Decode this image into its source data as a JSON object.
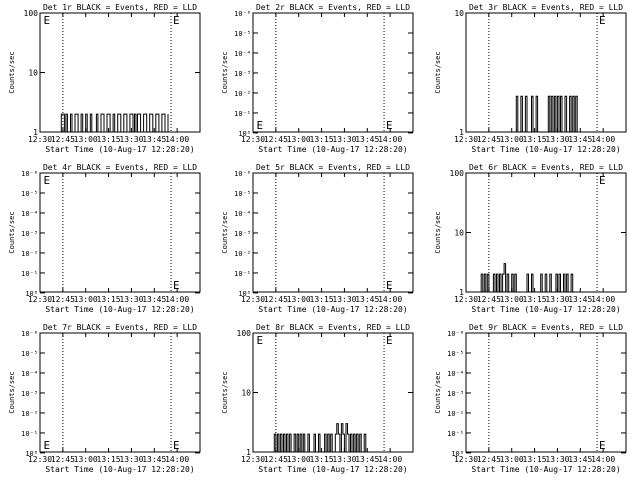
{
  "chart_data": [
    {
      "type": "line",
      "title": "Det 1r BLACK = Events, RED = LLD",
      "xlabel": "Start Time (10-Aug-17 12:28:20)",
      "ylabel": "Counts/sec",
      "scale": "log",
      "ylim": [
        1,
        100
      ],
      "ytick_values": [
        1,
        10,
        100
      ],
      "ytick_labels": [
        "1",
        "10",
        "100"
      ],
      "xticks": [
        "12:30",
        "12:45",
        "13:00",
        "13:15",
        "13:30",
        "13:45",
        "14:00"
      ],
      "xlim_min": [
        0,
        105
      ],
      "dotted_lines_min": [
        15,
        86,
        105
      ],
      "markers": [
        {
          "label": "E",
          "x": 1,
          "y": "top"
        },
        {
          "label": "E",
          "x": 86,
          "y": "top"
        }
      ],
      "series": [
        {
          "values": [
            [
              13,
              1
            ],
            [
              14,
              2
            ],
            [
              16,
              1
            ],
            [
              17,
              2
            ],
            [
              18,
              1
            ],
            [
              20,
              2
            ],
            [
              21,
              1
            ],
            [
              23,
              2
            ],
            [
              25,
              1
            ],
            [
              27,
              2
            ],
            [
              28,
              1
            ],
            [
              30,
              2
            ],
            [
              31,
              1
            ],
            [
              33,
              2
            ],
            [
              34,
              1
            ],
            [
              37,
              2
            ],
            [
              38,
              1
            ],
            [
              40,
              2
            ],
            [
              42,
              1
            ],
            [
              44,
              2
            ],
            [
              46,
              1
            ],
            [
              48,
              2
            ],
            [
              49,
              1
            ],
            [
              51,
              2
            ],
            [
              53,
              1
            ],
            [
              55,
              2
            ],
            [
              57,
              1
            ],
            [
              59,
              2
            ],
            [
              61,
              1
            ],
            [
              62,
              2
            ],
            [
              63,
              1
            ],
            [
              64,
              2
            ],
            [
              66,
              1
            ],
            [
              68,
              2
            ],
            [
              70,
              1
            ],
            [
              72,
              2
            ],
            [
              74,
              1
            ],
            [
              76,
              2
            ],
            [
              78,
              1
            ],
            [
              80,
              2
            ],
            [
              82,
              1
            ],
            [
              84,
              2
            ]
          ]
        }
      ]
    },
    {
      "type": "line",
      "title": "Det 2r BLACK = Events, RED = LLD",
      "xlabel": "Start Time (10-Aug-17 12:28:20)",
      "ylabel": "Counts/sec",
      "scale": "log",
      "ylim": [
        0.9,
        1e-06
      ],
      "ytick_labels": [
        "10⁰",
        "10⁻¹",
        "10⁻²",
        "10⁻³",
        "10⁻⁴",
        "10⁻⁵",
        "10⁻⁶"
      ],
      "xticks": [
        "12:30",
        "12:45",
        "13:00",
        "13:15",
        "13:30",
        "13:45",
        "14:00"
      ],
      "xlim_min": [
        0,
        105
      ],
      "dotted_lines_min": [
        15,
        86,
        105
      ],
      "markers": [
        {
          "label": "E",
          "x": 1,
          "y": "bottom"
        },
        {
          "label": "E",
          "x": 86,
          "y": "bottom"
        }
      ],
      "series": []
    },
    {
      "type": "line",
      "title": "Det 3r BLACK = Events, RED = LLD",
      "xlabel": "Start Time (10-Aug-17 12:28:20)",
      "ylabel": "Counts/sec",
      "scale": "log",
      "ylim": [
        1,
        10
      ],
      "ytick_values": [
        1,
        10
      ],
      "ytick_labels": [
        "1",
        "10"
      ],
      "xticks": [
        "12:30",
        "12:45",
        "13:00",
        "13:15",
        "13:30",
        "13:45",
        "14:00"
      ],
      "xlim_min": [
        0,
        105
      ],
      "dotted_lines_min": [
        15,
        86,
        105
      ],
      "markers": [
        {
          "label": "E",
          "x": 86,
          "y": "top"
        }
      ],
      "series": [
        {
          "values": [
            [
              32,
              1
            ],
            [
              33,
              2
            ],
            [
              34,
              1
            ],
            [
              36,
              2
            ],
            [
              37,
              1
            ],
            [
              39,
              2
            ],
            [
              40,
              1
            ],
            [
              43,
              2
            ],
            [
              44,
              1
            ],
            [
              46,
              2
            ],
            [
              47,
              1
            ],
            [
              54,
              2
            ],
            [
              55,
              1
            ],
            [
              56,
              2
            ],
            [
              57,
              1
            ],
            [
              58,
              2
            ],
            [
              59,
              1
            ],
            [
              60,
              2
            ],
            [
              61,
              1
            ],
            [
              62,
              2
            ],
            [
              63,
              1
            ],
            [
              65,
              2
            ],
            [
              66,
              1
            ],
            [
              68,
              2
            ],
            [
              69,
              1
            ],
            [
              70,
              2
            ],
            [
              71,
              1
            ],
            [
              72,
              2
            ],
            [
              73,
              1
            ]
          ]
        }
      ]
    },
    {
      "type": "line",
      "title": "Det 4r BLACK = Events, RED = LLD",
      "xlabel": "Start Time (10-Aug-17 12:28:20)",
      "ylabel": "Counts/sec",
      "scale": "log",
      "ylim": [
        0.9,
        1e-06
      ],
      "ytick_labels": [
        "10⁰",
        "10⁻¹",
        "10⁻²",
        "10⁻³",
        "10⁻⁴",
        "10⁻⁵",
        "10⁻⁶"
      ],
      "xticks": [
        "12:30",
        "12:45",
        "13:00",
        "13:15",
        "13:30",
        "13:45",
        "14:00"
      ],
      "xlim_min": [
        0,
        105
      ],
      "dotted_lines_min": [
        15,
        86,
        105
      ],
      "markers": [
        {
          "label": "E",
          "x": 1,
          "y": "top"
        },
        {
          "label": "E",
          "x": 86,
          "y": "bottom"
        }
      ],
      "series": []
    },
    {
      "type": "line",
      "title": "Det 5r BLACK = Events, RED = LLD",
      "xlabel": "Start Time (10-Aug-17 12:28:20)",
      "ylabel": "Counts/sec",
      "scale": "log",
      "ylim": [
        0.9,
        1e-06
      ],
      "ytick_labels": [
        "10⁰",
        "10⁻¹",
        "10⁻²",
        "10⁻³",
        "10⁻⁴",
        "10⁻⁵",
        "10⁻⁶"
      ],
      "xticks": [
        "12:30",
        "12:45",
        "13:00",
        "13:15",
        "13:30",
        "13:45",
        "14:00"
      ],
      "xlim_min": [
        0,
        105
      ],
      "dotted_lines_min": [
        15,
        86,
        105
      ],
      "markers": [
        {
          "label": "E",
          "x": 86,
          "y": "bottom"
        }
      ],
      "series": []
    },
    {
      "type": "line",
      "title": "Det 6r BLACK = Events, RED = LLD",
      "xlabel": "Start Time (10-Aug-17 12:28:20)",
      "ylabel": "Counts/sec",
      "scale": "log",
      "ylim": [
        1,
        100
      ],
      "ytick_values": [
        1,
        10,
        100
      ],
      "ytick_labels": [
        "1",
        "10",
        "100"
      ],
      "xticks": [
        "12:30",
        "12:45",
        "13:00",
        "13:15",
        "13:30",
        "13:45",
        "14:00"
      ],
      "xlim_min": [
        0,
        105
      ],
      "dotted_lines_min": [
        15,
        86,
        105
      ],
      "markers": [
        {
          "label": "E",
          "x": 86,
          "y": "top"
        }
      ],
      "series": [
        {
          "values": [
            [
              9,
              1
            ],
            [
              10,
              2
            ],
            [
              11,
              1
            ],
            [
              12,
              2
            ],
            [
              13,
              1
            ],
            [
              14,
              2
            ],
            [
              15,
              1
            ],
            [
              18,
              2
            ],
            [
              19,
              1
            ],
            [
              20,
              2
            ],
            [
              21,
              1
            ],
            [
              22,
              2
            ],
            [
              23,
              1
            ],
            [
              24,
              2
            ],
            [
              25,
              3
            ],
            [
              26,
              1
            ],
            [
              27,
              2
            ],
            [
              28,
              1
            ],
            [
              30,
              2
            ],
            [
              31,
              1
            ],
            [
              32,
              2
            ],
            [
              33,
              1
            ],
            [
              40,
              2
            ],
            [
              41,
              1
            ],
            [
              43,
              2
            ],
            [
              44,
              1
            ],
            [
              49,
              2
            ],
            [
              50,
              1
            ],
            [
              52,
              2
            ],
            [
              53,
              1
            ],
            [
              55,
              2
            ],
            [
              56,
              1
            ],
            [
              59,
              2
            ],
            [
              60,
              1
            ],
            [
              61,
              2
            ],
            [
              62,
              1
            ],
            [
              64,
              2
            ],
            [
              65,
              1
            ],
            [
              66,
              2
            ],
            [
              67,
              1
            ],
            [
              69,
              2
            ],
            [
              70,
              1
            ]
          ]
        }
      ]
    },
    {
      "type": "line",
      "title": "Det 7r BLACK = Events, RED = LLD",
      "xlabel": "Start Time (10-Aug-17 12:28:20)",
      "ylabel": "Counts/sec",
      "scale": "log",
      "ylim": [
        0.9,
        1e-06
      ],
      "ytick_labels": [
        "10⁰",
        "10⁻¹",
        "10⁻²",
        "10⁻³",
        "10⁻⁴",
        "10⁻⁵",
        "10⁻⁶"
      ],
      "xticks": [
        "12:30",
        "12:45",
        "13:00",
        "13:15",
        "13:30",
        "13:45",
        "14:00"
      ],
      "xlim_min": [
        0,
        105
      ],
      "dotted_lines_min": [
        15,
        86,
        105
      ],
      "markers": [
        {
          "label": "E",
          "x": 1,
          "y": "bottom"
        },
        {
          "label": "E",
          "x": 86,
          "y": "bottom"
        }
      ],
      "series": []
    },
    {
      "type": "line",
      "title": "Det 8r BLACK = Events, RED = LLD",
      "xlabel": "Start Time (10-Aug-17 12:28:20)",
      "ylabel": "Counts/sec",
      "scale": "log",
      "ylim": [
        1,
        100
      ],
      "ytick_values": [
        1,
        10,
        100
      ],
      "ytick_labels": [
        "1",
        "10",
        "100"
      ],
      "xticks": [
        "12:30",
        "12:45",
        "13:00",
        "13:15",
        "13:30",
        "13:45",
        "14:00"
      ],
      "xlim_min": [
        0,
        105
      ],
      "dotted_lines_min": [
        15,
        86,
        105
      ],
      "markers": [
        {
          "label": "E",
          "x": 1,
          "y": "top"
        },
        {
          "label": "E",
          "x": 86,
          "y": "top"
        }
      ],
      "series": [
        {
          "values": [
            [
              13,
              1
            ],
            [
              14,
              2
            ],
            [
              15,
              1
            ],
            [
              16,
              2
            ],
            [
              17,
              1
            ],
            [
              18,
              2
            ],
            [
              19,
              1
            ],
            [
              20,
              2
            ],
            [
              21,
              1
            ],
            [
              22,
              2
            ],
            [
              23,
              1
            ],
            [
              24,
              2
            ],
            [
              25,
              1
            ],
            [
              27,
              2
            ],
            [
              28,
              1
            ],
            [
              29,
              2
            ],
            [
              30,
              1
            ],
            [
              31,
              2
            ],
            [
              32,
              1
            ],
            [
              33,
              2
            ],
            [
              34,
              1
            ],
            [
              36,
              2
            ],
            [
              37,
              1
            ],
            [
              40,
              2
            ],
            [
              41,
              1
            ],
            [
              43,
              2
            ],
            [
              44,
              1
            ],
            [
              47,
              2
            ],
            [
              48,
              1
            ],
            [
              49,
              2
            ],
            [
              50,
              1
            ],
            [
              51,
              2
            ],
            [
              52,
              1
            ],
            [
              54,
              2
            ],
            [
              55,
              3
            ],
            [
              56,
              2
            ],
            [
              57,
              1
            ],
            [
              58,
              3
            ],
            [
              59,
              2
            ],
            [
              60,
              1
            ],
            [
              61,
              3
            ],
            [
              62,
              2
            ],
            [
              63,
              1
            ],
            [
              64,
              2
            ],
            [
              65,
              1
            ],
            [
              66,
              2
            ],
            [
              67,
              1
            ],
            [
              68,
              2
            ],
            [
              69,
              1
            ],
            [
              70,
              2
            ],
            [
              71,
              1
            ],
            [
              73,
              2
            ],
            [
              74,
              1
            ]
          ]
        }
      ]
    },
    {
      "type": "line",
      "title": "Det 9r BLACK = Events, RED = LLD",
      "xlabel": "Start Time (10-Aug-17 12:28:20)",
      "ylabel": "Counts/sec",
      "scale": "log",
      "ylim": [
        0.9,
        1e-06
      ],
      "ytick_labels": [
        "10⁰",
        "10⁻¹",
        "10⁻²",
        "10⁻³",
        "10⁻⁴",
        "10⁻⁵",
        "10⁻⁶"
      ],
      "xticks": [
        "12:30",
        "12:45",
        "13:00",
        "13:15",
        "13:30",
        "13:45",
        "14:00"
      ],
      "xlim_min": [
        0,
        105
      ],
      "dotted_lines_min": [
        15,
        86,
        105
      ],
      "markers": [
        {
          "label": "E",
          "x": 86,
          "y": "bottom"
        }
      ],
      "series": []
    }
  ]
}
